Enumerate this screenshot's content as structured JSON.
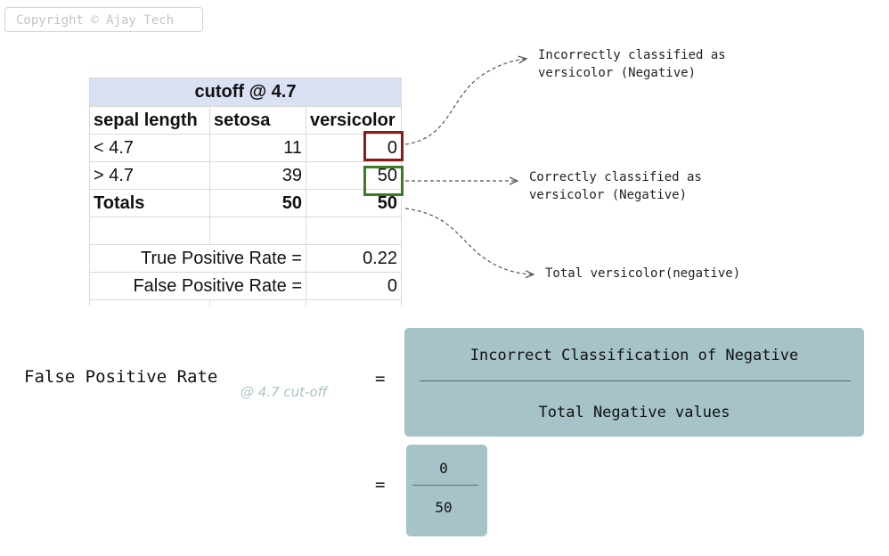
{
  "copyright": "Copyright © Ajay Tech",
  "table": {
    "title": "cutoff @ 4.7",
    "headers": [
      "sepal length",
      "setosa",
      "versicolor"
    ],
    "rows": [
      [
        "< 4.7",
        "11",
        "0"
      ],
      [
        "> 4.7",
        "39",
        "50"
      ],
      [
        "Totals",
        "50",
        "50"
      ]
    ],
    "tpr_label": "True Positive Rate =",
    "tpr_value": "0.22",
    "fpr_label": "False Positive Rate =",
    "fpr_value": "0"
  },
  "annotations": {
    "incorrect": "Incorrectly classified as\nversicolor (Negative)",
    "correct": "Correctly classified as\nversicolor (Negative)",
    "total": "Total versicolor(negative)"
  },
  "formula": {
    "label": "False Positive Rate",
    "cutoff_note": "@ 4.7 cut-off",
    "equals": "=",
    "numerator": "Incorrect Classification of Negative",
    "denominator": "Total Negative values",
    "numerator_value": "0",
    "denominator_value": "50"
  },
  "colors": {
    "header_bg": "#dae1f3",
    "red_box": "#8b1a1a",
    "green_box": "#3d7a25",
    "formula_box": "#a5c3c8"
  }
}
